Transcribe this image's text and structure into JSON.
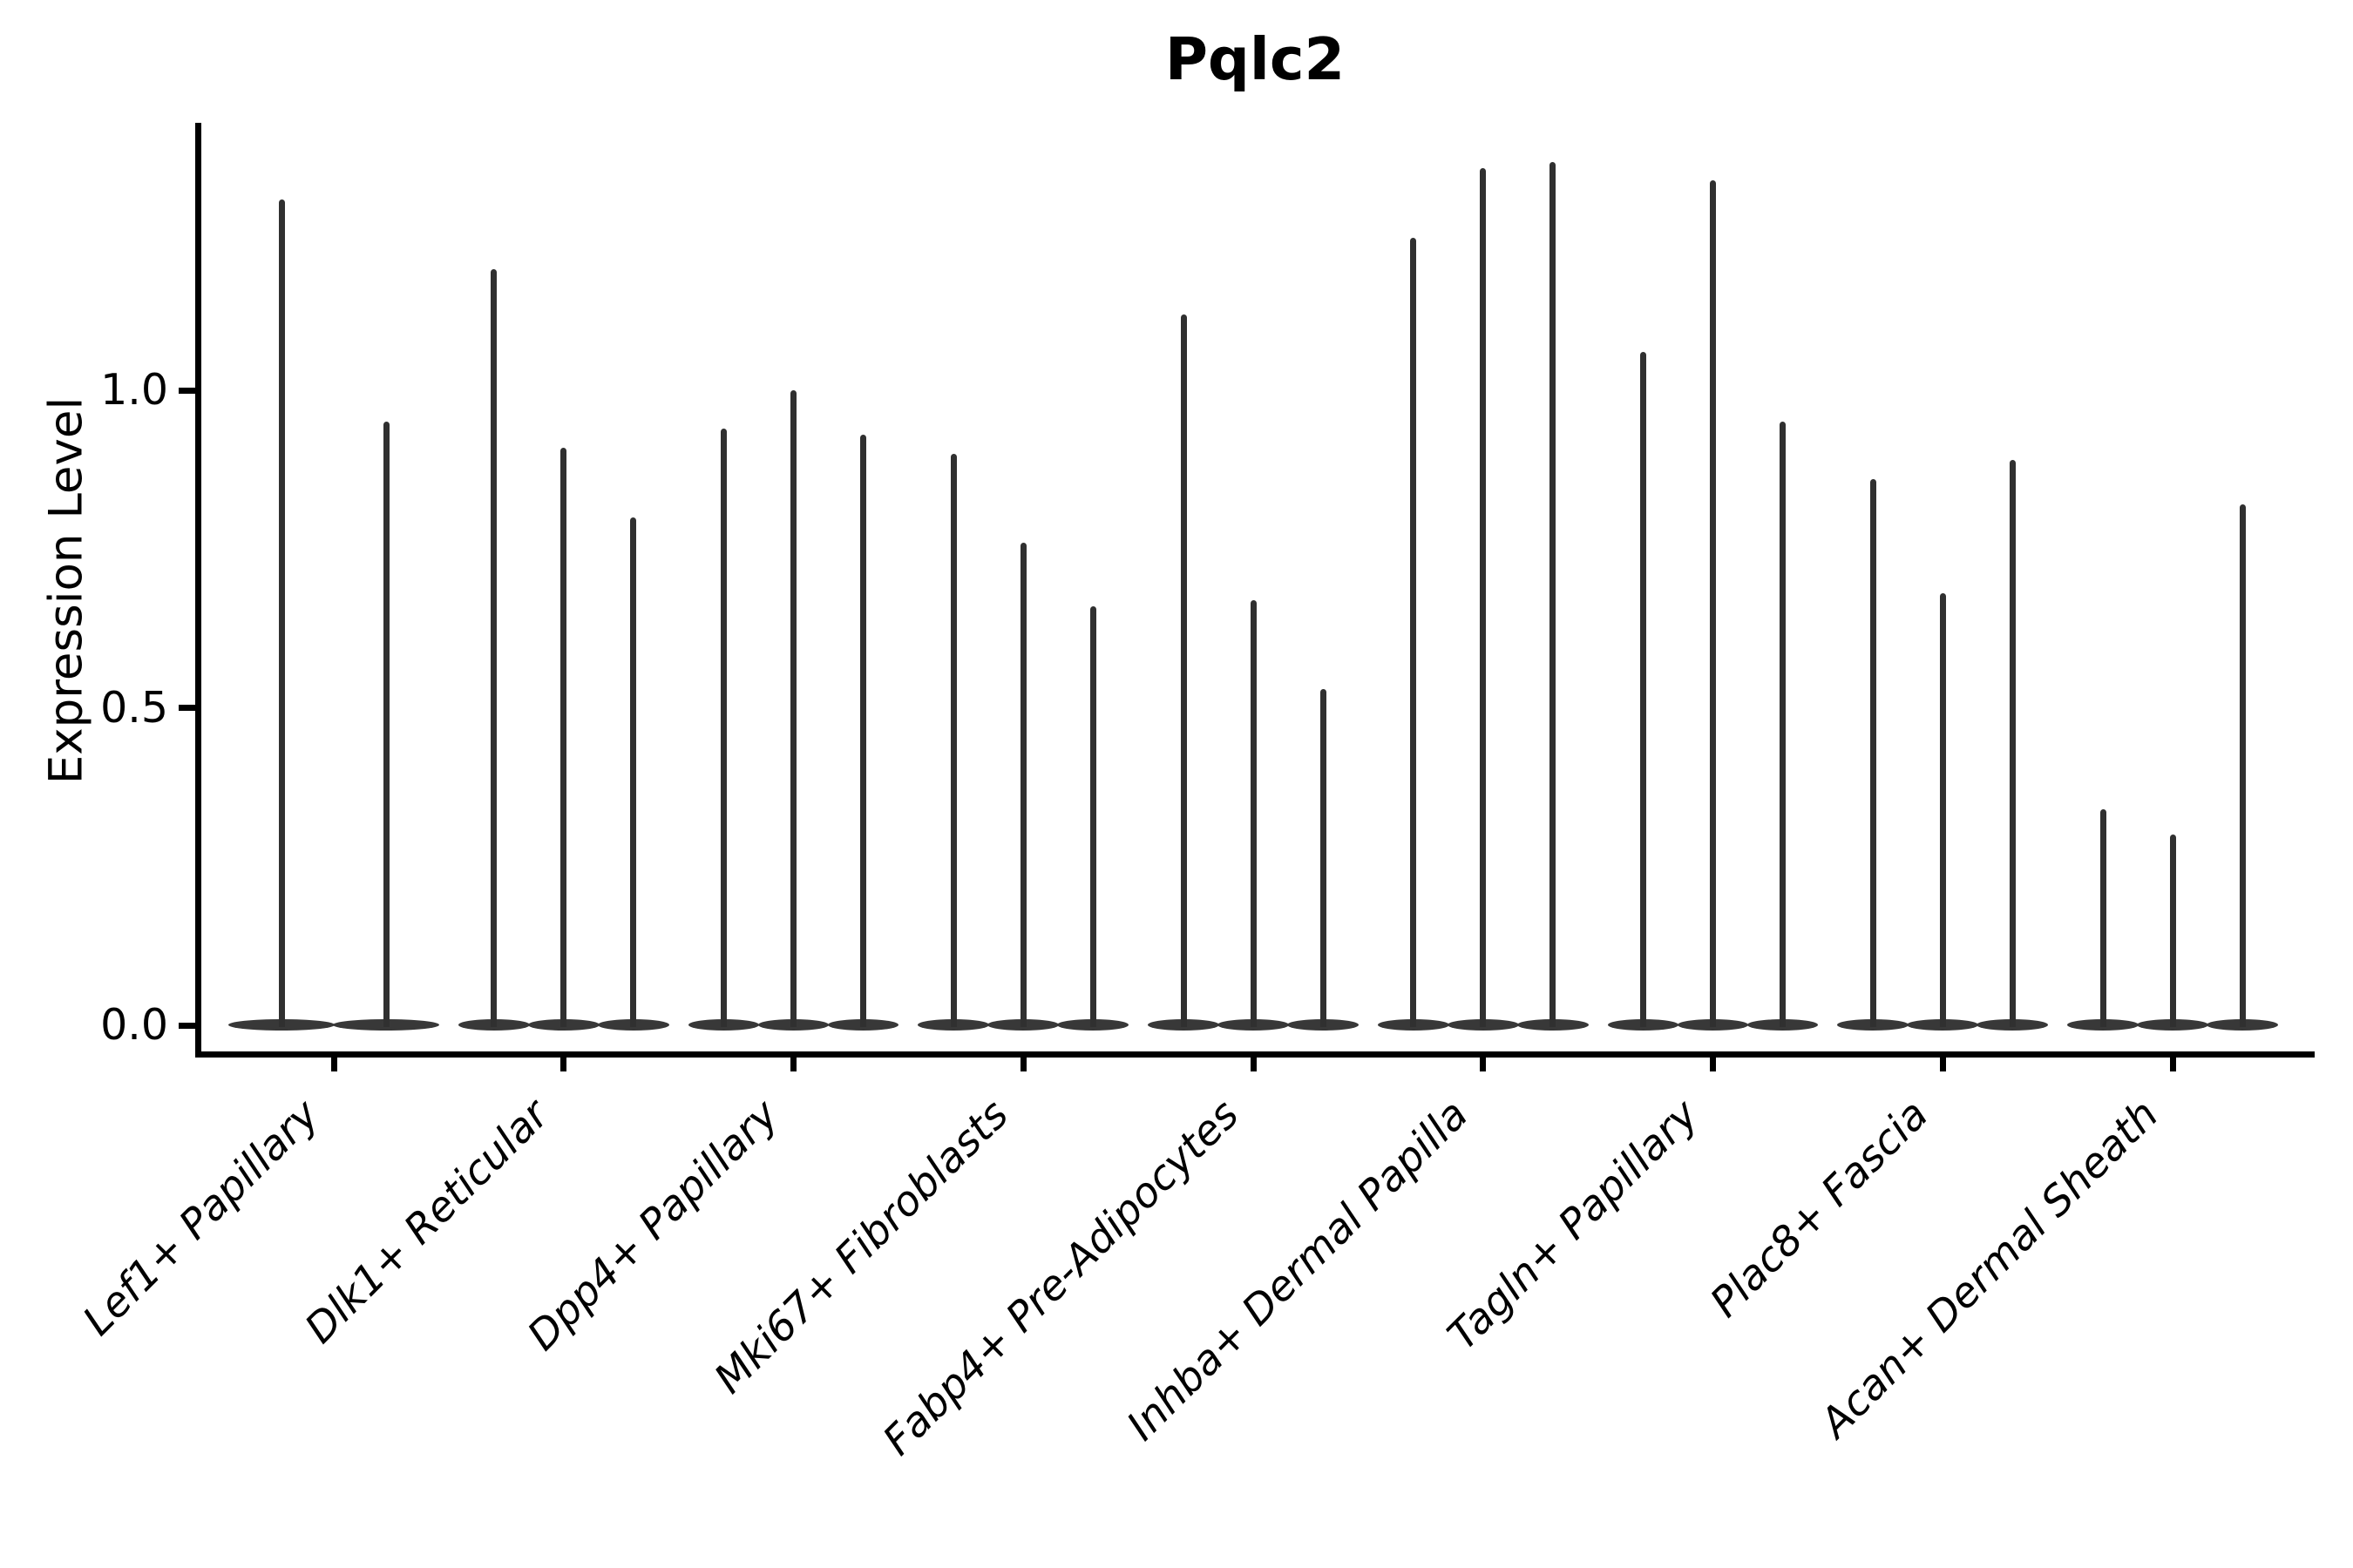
{
  "figure": {
    "title": "Pqlc2",
    "y_axis": {
      "label": "Expression Level",
      "tick_labels": [
        "0.0",
        "0.5",
        "1.0"
      ]
    }
  },
  "colors": {
    "background": "#ffffff",
    "axis_and_text": "#000000",
    "violin": "#383838",
    "violin_spike": "#303030"
  },
  "chart_data": {
    "type": "violin",
    "title": "Pqlc2",
    "xlabel": "",
    "ylabel": "Expression Level",
    "ylim": [
      -0.07,
      1.43
    ],
    "yticks": [
      0.0,
      0.5,
      1.0
    ],
    "grid": false,
    "legend": "none",
    "description": "Grouped single-cell expression violin plot; each violin is extremely wide at 0 (most cells zero) with a thin spike rising to the maximum expression value. Lef1+ Papillary has 2 violins, all other groups have 3.",
    "categories": [
      "Lef1+ Papillary",
      "Dlk1+ Reticular",
      "Dpp4+ Papillary",
      "Mki67+ Fibroblasts",
      "Fabp4+ Pre-Adipocytes",
      "Inhba+ Dermal Papilla",
      "Tagln+ Papillary",
      "Plac8+ Fascia",
      "Acan+ Dermal Sheath"
    ],
    "groups": [
      {
        "label": "Lef1+ Papillary",
        "violin_base_value": 0.0,
        "violin_max_values": [
          1.3,
          0.95
        ]
      },
      {
        "label": "Dlk1+ Reticular",
        "violin_base_value": 0.0,
        "violin_max_values": [
          1.19,
          0.91,
          0.8
        ]
      },
      {
        "label": "Dpp4+ Papillary",
        "violin_base_value": 0.0,
        "violin_max_values": [
          0.94,
          1.0,
          0.93
        ]
      },
      {
        "label": "Mki67+ Fibroblasts",
        "violin_base_value": 0.0,
        "violin_max_values": [
          0.9,
          0.76,
          0.66
        ]
      },
      {
        "label": "Fabp4+ Pre-Adipocytes",
        "violin_base_value": 0.0,
        "violin_max_values": [
          1.12,
          0.67,
          0.53
        ]
      },
      {
        "label": "Inhba+ Dermal Papilla",
        "violin_base_value": 0.0,
        "violin_max_values": [
          1.24,
          1.35,
          1.36
        ]
      },
      {
        "label": "Tagln+ Papillary",
        "violin_base_value": 0.0,
        "violin_max_values": [
          1.06,
          1.33,
          0.95
        ]
      },
      {
        "label": "Plac8+ Fascia",
        "violin_base_value": 0.0,
        "violin_max_values": [
          0.86,
          0.68,
          0.89
        ]
      },
      {
        "label": "Acan+ Dermal Sheath",
        "violin_base_value": 0.0,
        "violin_max_values": [
          0.34,
          0.3,
          0.82
        ]
      }
    ]
  }
}
